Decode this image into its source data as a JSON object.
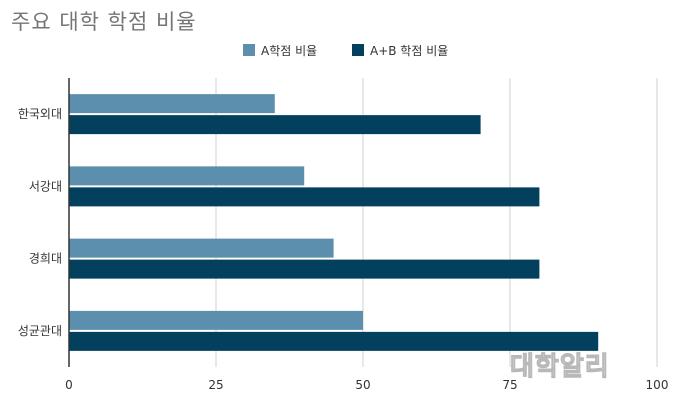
{
  "chart_data": {
    "type": "bar",
    "orientation": "horizontal",
    "title": "주요 대학 학점 비율",
    "categories": [
      "한국외대",
      "서강대",
      "경희대",
      "성균관대"
    ],
    "series": [
      {
        "name": "A학점 비율",
        "values": [
          35,
          40,
          45,
          50
        ],
        "color": "#5b8fad"
      },
      {
        "name": "A+B 학점 비율",
        "values": [
          70,
          80,
          80,
          90
        ],
        "color": "#03405e"
      }
    ],
    "xlim": [
      0,
      100
    ],
    "xticks": [
      0,
      25,
      50,
      75,
      100
    ],
    "grid": true,
    "legend_position": "top-center"
  },
  "watermark": "대학알리"
}
